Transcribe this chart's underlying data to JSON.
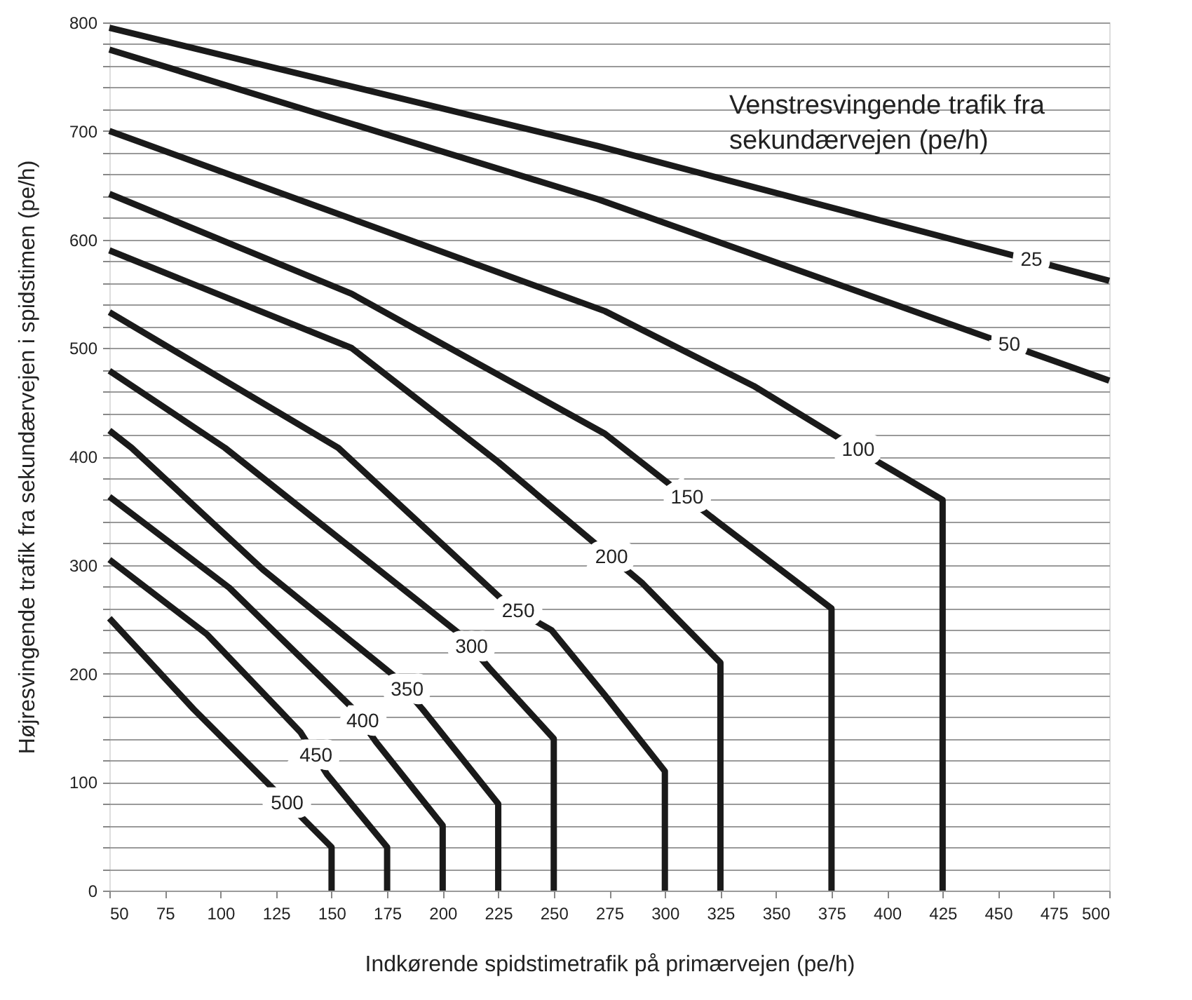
{
  "chart_data": {
    "type": "line",
    "xlabel": "Indkørende spidstimetrafik på primærvejen (pe/h)",
    "ylabel": "Højresvingende trafik fra sekundærvejen i spidstimen (pe/h)",
    "legend_title": "Venstresvingende trafik fra sekundærvejen (pe/h)",
    "xlim": [
      50,
      500
    ],
    "ylim": [
      0,
      800
    ],
    "xticks": [
      50,
      75,
      100,
      125,
      150,
      175,
      200,
      225,
      250,
      275,
      300,
      325,
      350,
      375,
      400,
      425,
      450,
      475,
      500
    ],
    "yticks": [
      0,
      {
        "value": 20,
        "label": null
      },
      {
        "value": 40,
        "label": null
      },
      {
        "value": 60,
        "label": null
      },
      {
        "value": 80,
        "label": null
      },
      100,
      {
        "value": 120,
        "label": null
      },
      {
        "value": 140,
        "label": null
      },
      {
        "value": 160,
        "label": null
      },
      {
        "value": 180,
        "label": null
      },
      200,
      {
        "value": 220,
        "label": null
      },
      {
        "value": 240,
        "label": null
      },
      {
        "value": 260,
        "label": null
      },
      {
        "value": 280,
        "label": null
      },
      300,
      {
        "value": 320,
        "label": null
      },
      {
        "value": 340,
        "label": null
      },
      {
        "value": 360,
        "label": null
      },
      {
        "value": 380,
        "label": null
      },
      400,
      {
        "value": 420,
        "label": null
      },
      {
        "value": 440,
        "label": null
      },
      {
        "value": 460,
        "label": null
      },
      {
        "value": 480,
        "label": null
      },
      500,
      {
        "value": 520,
        "label": null
      },
      {
        "value": 540,
        "label": null
      },
      {
        "value": 560,
        "label": null
      },
      {
        "value": 580,
        "label": null
      },
      600,
      {
        "value": 620,
        "label": null
      },
      {
        "value": 640,
        "label": null
      },
      {
        "value": 660,
        "label": null
      },
      {
        "value": 680,
        "label": null
      },
      700,
      {
        "value": 720,
        "label": null
      },
      {
        "value": 740,
        "label": null
      },
      {
        "value": 760,
        "label": null
      },
      {
        "value": 780,
        "label": null
      },
      800
    ],
    "grid": "y",
    "marker": "none",
    "line_style": "solid",
    "legend": false,
    "series": [
      {
        "color": "#1a1a1a",
        "x": [
          50,
          270,
          500
        ],
        "values": [
          795,
          686,
          562
        ]
      },
      {
        "color": "#1a1a1a",
        "x": [
          50,
          270,
          500
        ],
        "values": [
          775,
          637,
          470
        ]
      },
      {
        "color": "#1a1a1a",
        "x": [
          50,
          159,
          273,
          340,
          396,
          425,
          425
        ],
        "values": [
          700,
          619,
          534,
          465,
          395,
          360,
          0
        ]
      },
      {
        "color": "#1a1a1a",
        "x": [
          50,
          159,
          273,
          323,
          375,
          375
        ],
        "values": [
          642,
          550,
          421,
          341,
          260,
          0
        ]
      },
      {
        "color": "#1a1a1a",
        "x": [
          50,
          159,
          225,
          290,
          325,
          325
        ],
        "values": [
          590,
          500,
          395,
          283,
          210,
          0
        ]
      },
      {
        "color": "#1a1a1a",
        "x": [
          50,
          153,
          230,
          249,
          273,
          300,
          300
        ],
        "values": [
          533,
          408,
          262,
          240,
          180,
          110,
          0
        ]
      },
      {
        "color": "#1a1a1a",
        "x": [
          50,
          102,
          155,
          208,
          221,
          250,
          250
        ],
        "values": [
          479,
          408,
          322,
          236,
          205,
          140,
          0
        ]
      },
      {
        "color": "#1a1a1a",
        "x": [
          50,
          60,
          119,
          178,
          191,
          225,
          225
        ],
        "values": [
          424,
          408,
          296,
          198,
          167,
          80,
          0
        ]
      },
      {
        "color": "#1a1a1a",
        "x": [
          50,
          104,
          159,
          170,
          200,
          200
        ],
        "values": [
          363,
          279,
          169,
          137,
          60,
          0
        ]
      },
      {
        "color": "#1a1a1a",
        "x": [
          50,
          94,
          136,
          148,
          175,
          175
        ],
        "values": [
          305,
          236,
          146,
          107,
          40,
          0
        ]
      },
      {
        "color": "#1a1a1a",
        "x": [
          50,
          88,
          150,
          150
        ],
        "values": [
          251,
          167,
          40,
          0
        ]
      }
    ],
    "annotations": [
      {
        "text": "25",
        "x": 465,
        "y": 581
      },
      {
        "text": "50",
        "x": 455,
        "y": 503
      },
      {
        "text": "100",
        "x": 387,
        "y": 406
      },
      {
        "text": "150",
        "x": 310,
        "y": 362
      },
      {
        "text": "200",
        "x": 276,
        "y": 307
      },
      {
        "text": "250",
        "x": 234,
        "y": 257
      },
      {
        "text": "300",
        "x": 213,
        "y": 224
      },
      {
        "text": "350",
        "x": 184,
        "y": 185
      },
      {
        "text": "400",
        "x": 164,
        "y": 156
      },
      {
        "text": "450",
        "x": 143,
        "y": 124
      },
      {
        "text": "500",
        "x": 130,
        "y": 80
      }
    ]
  }
}
